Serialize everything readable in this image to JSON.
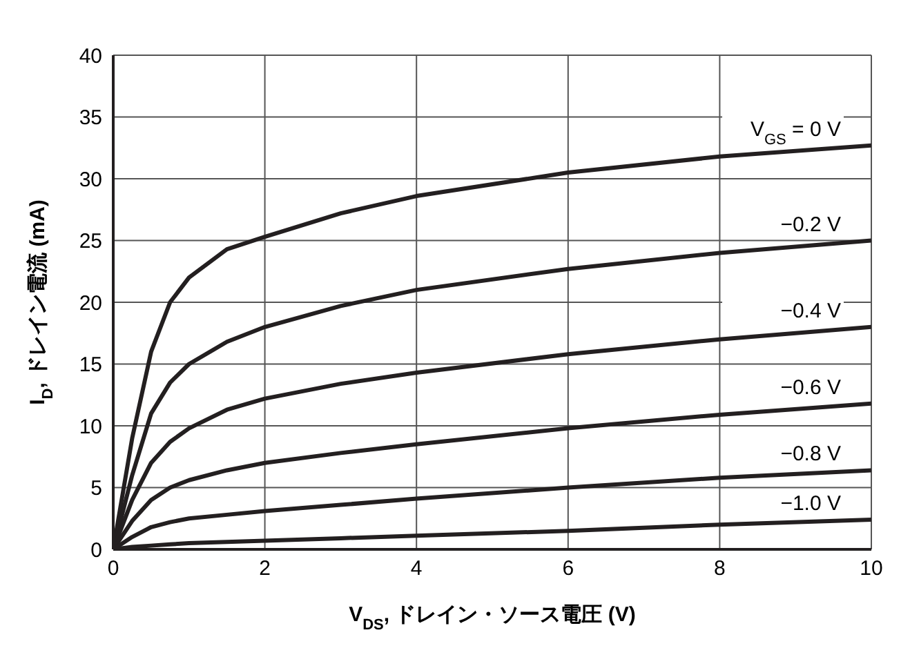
{
  "chart_data": {
    "type": "line",
    "xlabel": "V$_{DS}$, ドレイン・ソース電圧 (V)",
    "ylabel": "I$_{D}$, ドレイン電流 (mA)",
    "x": [
      0,
      0.25,
      0.5,
      0.75,
      1,
      1.5,
      2,
      3,
      4,
      6,
      8,
      10
    ],
    "series": [
      {
        "name": "V$_{GS}$ = 0 V",
        "color": "#231f20",
        "values": [
          0,
          9,
          16,
          20,
          22,
          24.3,
          25.3,
          27.2,
          28.6,
          30.5,
          31.8,
          32.7
        ]
      },
      {
        "name": "−0.2 V",
        "color": "#231f20",
        "values": [
          0,
          6,
          11,
          13.5,
          15,
          16.8,
          18,
          19.7,
          21,
          22.7,
          24,
          25
        ]
      },
      {
        "name": "−0.4 V",
        "color": "#231f20",
        "values": [
          0,
          4,
          7,
          8.7,
          9.8,
          11.3,
          12.2,
          13.4,
          14.3,
          15.8,
          17,
          18
        ]
      },
      {
        "name": "−0.6 V",
        "color": "#231f20",
        "values": [
          0,
          2.3,
          4,
          5,
          5.6,
          6.4,
          7,
          7.8,
          8.5,
          9.8,
          10.9,
          11.8
        ]
      },
      {
        "name": "−0.8 V",
        "color": "#231f20",
        "values": [
          0,
          1,
          1.8,
          2.2,
          2.5,
          2.8,
          3.1,
          3.6,
          4.1,
          5,
          5.8,
          6.4
        ]
      },
      {
        "name": "−1.0 V",
        "color": "#231f20",
        "values": [
          0,
          0.2,
          0.3,
          0.4,
          0.5,
          0.6,
          0.7,
          0.9,
          1.1,
          1.5,
          2,
          2.4
        ]
      }
    ],
    "xlim": [
      0,
      10
    ],
    "xticks": [
      0,
      2,
      4,
      6,
      8,
      10
    ],
    "ylim": [
      0,
      40
    ],
    "yticks": [
      0,
      5,
      10,
      15,
      20,
      25,
      30,
      35,
      40
    ],
    "grid": true,
    "marker": "none",
    "line_style": "solid"
  }
}
